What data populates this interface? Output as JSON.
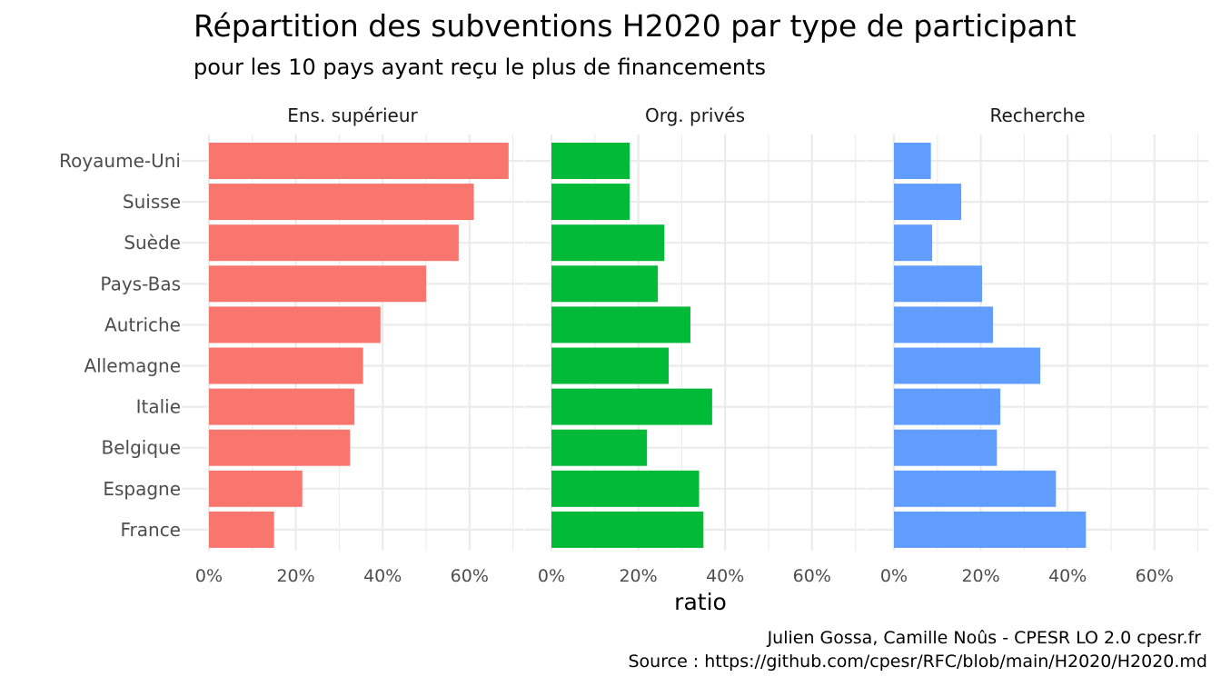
{
  "chart_data": {
    "type": "bar",
    "orientation": "horizontal",
    "title": "Répartition des subventions H2020 par type de participant",
    "subtitle": "pour les 10 pays ayant reçu le plus de financements",
    "xlabel": "ratio",
    "ylabel": "",
    "xlim": [
      0,
      0.7
    ],
    "x_ticks": [
      0,
      0.2,
      0.4,
      0.6
    ],
    "x_tick_labels": [
      "0%",
      "20%",
      "40%",
      "60%"
    ],
    "grid": true,
    "legend": "none",
    "caption": [
      "Julien Gossa, Camille Noûs - CPESR LO 2.0 cpesr.fr",
      "Source : https://github.com/cpesr/RFC/blob/main/H2020/H2020.md"
    ],
    "categories": [
      "Royaume-Uni",
      "Suisse",
      "Suède",
      "Pays-Bas",
      "Autriche",
      "Allemagne",
      "Italie",
      "Belgique",
      "Espagne",
      "France"
    ],
    "facets": [
      {
        "name": "Ens. supérieur",
        "color": "#F8766D",
        "values": [
          0.69,
          0.61,
          0.575,
          0.5,
          0.395,
          0.355,
          0.335,
          0.325,
          0.215,
          0.15
        ]
      },
      {
        "name": "Org. privés",
        "color": "#00BA38",
        "values": [
          0.18,
          0.18,
          0.26,
          0.245,
          0.32,
          0.27,
          0.37,
          0.22,
          0.34,
          0.35
        ]
      },
      {
        "name": "Recherche",
        "color": "#619CFF",
        "values": [
          0.085,
          0.155,
          0.088,
          0.203,
          0.228,
          0.337,
          0.245,
          0.237,
          0.373,
          0.442
        ]
      }
    ]
  }
}
